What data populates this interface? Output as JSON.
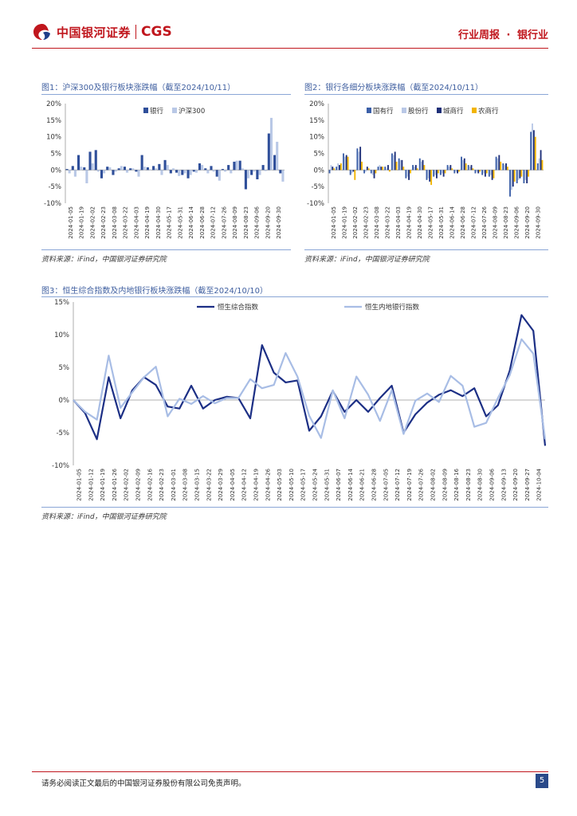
{
  "header": {
    "logo_cn": "中国银河证券",
    "logo_en": "CGS",
    "report_type": "行业周报",
    "dot": "·",
    "industry": "银行业"
  },
  "figures": [
    {
      "title": "图1：沪深300及银行板块涨跌幅（截至2024/10/11）",
      "source": "资料来源：iFind，中国银河证券研究院"
    },
    {
      "title": "图2：银行各细分板块涨跌幅（截至2024/10/11）",
      "source": "资料来源：iFind，中国银河证券研究院"
    },
    {
      "title": "图3：恒生综合指数及内地银行板块涨跌幅（截至2024/10/10）",
      "source": "资料来源：iFind，中国银河证券研究院"
    }
  ],
  "footer": {
    "disclaimer": "请务必阅读正文最后的中国银河证券股份有限公司免责声明。",
    "page": "5"
  },
  "chart_data": [
    {
      "type": "bar",
      "title": "沪深300及银行板块涨跌幅（截至2024/10/11）",
      "ylim": [
        -10,
        20
      ],
      "yticks": [
        "20%",
        "15%",
        "10%",
        "5%",
        "0%",
        "-5%",
        "-10%"
      ],
      "tick_values": [
        20,
        15,
        10,
        5,
        0,
        -5,
        -10
      ],
      "x_ticks": [
        "2024-01-05",
        "2024-01-19",
        "2024-02-02",
        "2024-02-23",
        "2024-03-08",
        "2024-03-22",
        "2024-04-03",
        "2024-04-19",
        "2024-04-30",
        "2024-05-17",
        "2024-05-31",
        "2024-06-14",
        "2024-06-28",
        "2024-07-12",
        "2024-07-26",
        "2024-08-09",
        "2024-08-23",
        "2024-09-06",
        "2024-09-20",
        "2024-09-30"
      ],
      "series": [
        {
          "name": "银行",
          "color": "#2f4f9a",
          "values": [
            0.3,
            1.2,
            4.5,
            0.8,
            5.5,
            6.0,
            -2.5,
            1.0,
            -1.5,
            0.5,
            1.0,
            0.5,
            -0.5,
            4.5,
            0.8,
            1.2,
            1.8,
            3.0,
            -1.0,
            -0.8,
            -1.5,
            -2.5,
            -0.5,
            2.0,
            0.5,
            1.2,
            -2.0,
            0.3,
            1.5,
            2.5,
            2.8,
            -5.8,
            -1.5,
            -2.8,
            1.5,
            11.0,
            4.5,
            -1.0
          ]
        },
        {
          "name": "沪深300",
          "color": "#b9c8e6",
          "values": [
            -1.0,
            -2.0,
            1.0,
            -4.0,
            2.0,
            -0.5,
            -1.0,
            0.8,
            -0.5,
            1.2,
            -0.8,
            0.5,
            -2.0,
            1.0,
            0.2,
            0.5,
            -1.5,
            1.5,
            0.5,
            -1.8,
            -1.0,
            -1.5,
            -0.8,
            1.5,
            -1.0,
            -0.5,
            -3.2,
            -0.5,
            -1.0,
            2.8,
            0.5,
            -2.5,
            -0.5,
            -1.5,
            -0.3,
            15.7,
            8.5,
            -3.5
          ]
        }
      ]
    },
    {
      "type": "bar",
      "title": "银行各细分板块涨跌幅（截至2024/10/11）",
      "ylim": [
        -10,
        20
      ],
      "yticks": [
        "20%",
        "15%",
        "10%",
        "5%",
        "0%",
        "-5%",
        "-10%"
      ],
      "tick_values": [
        20,
        15,
        10,
        5,
        0,
        -5,
        -10
      ],
      "x_ticks": [
        "2024-01-05",
        "2024-01-19",
        "2024-02-02",
        "2024-02-23",
        "2024-03-08",
        "2024-03-22",
        "2024-04-03",
        "2024-04-19",
        "2024-04-30",
        "2024-05-17",
        "2024-05-31",
        "2024-06-14",
        "2024-06-28",
        "2024-07-12",
        "2024-07-26",
        "2024-08-09",
        "2024-08-23",
        "2024-09-06",
        "2024-09-20",
        "2024-09-30"
      ],
      "series": [
        {
          "name": "国有行",
          "color": "#3b5fa8",
          "values": [
            -1.0,
            1.0,
            5.0,
            -1.5,
            6.5,
            -1.0,
            -1.0,
            1.0,
            1.0,
            5.0,
            3.5,
            -2.5,
            1.5,
            3.5,
            -3.0,
            -2.0,
            -1.5,
            1.5,
            -1.0,
            4.0,
            1.5,
            -1.0,
            -1.5,
            -2.0,
            4.0,
            2.0,
            -8.0,
            -4.0,
            -4.0,
            11.5,
            2.0
          ]
        },
        {
          "name": "股份行",
          "color": "#b9c8e6",
          "values": [
            1.5,
            2.0,
            4.0,
            -1.0,
            5.5,
            -0.5,
            -1.5,
            1.5,
            0.5,
            4.5,
            3.0,
            -2.0,
            1.0,
            2.5,
            -2.5,
            -1.5,
            -1.0,
            1.0,
            -0.5,
            3.0,
            1.0,
            -0.5,
            -1.0,
            -1.5,
            3.5,
            1.5,
            -6.0,
            -3.0,
            -3.0,
            14.0,
            3.5
          ]
        },
        {
          "name": "城商行",
          "color": "#1e2f78",
          "values": [
            1.0,
            1.5,
            4.5,
            -0.5,
            7.0,
            1.0,
            -2.5,
            1.0,
            1.5,
            5.5,
            3.0,
            -3.0,
            1.5,
            3.0,
            -3.5,
            -2.5,
            -2.0,
            1.5,
            -1.0,
            3.5,
            1.5,
            -1.0,
            -2.0,
            -3.0,
            4.5,
            2.0,
            -5.0,
            -2.5,
            -4.0,
            12.0,
            6.0
          ]
        },
        {
          "name": "农商行",
          "color": "#f2b400",
          "values": [
            0.5,
            2.0,
            4.0,
            -3.0,
            2.5,
            0.5,
            -1.0,
            1.0,
            -0.5,
            2.5,
            1.0,
            -1.0,
            0.5,
            1.5,
            -4.5,
            -1.0,
            -1.0,
            0.5,
            -0.5,
            2.0,
            0.5,
            -0.5,
            -1.0,
            -2.5,
            2.5,
            1.0,
            -3.5,
            -2.0,
            -2.0,
            10.0,
            3.0
          ]
        }
      ]
    },
    {
      "type": "line",
      "title": "恒生综合指数及内地银行板块涨跌幅（截至2024/10/10）",
      "ylim": [
        -10,
        15
      ],
      "yticks": [
        "15%",
        "10%",
        "5%",
        "0%",
        "-5%",
        "-10%"
      ],
      "tick_values": [
        15,
        10,
        5,
        0,
        -5,
        -10
      ],
      "x_ticks": [
        "2024-01-05",
        "2024-01-12",
        "2024-01-19",
        "2024-01-26",
        "2024-02-02",
        "2024-02-09",
        "2024-02-16",
        "2024-02-23",
        "2024-03-01",
        "2024-03-08",
        "2024-03-15",
        "2024-03-22",
        "2024-03-29",
        "2024-04-05",
        "2024-04-12",
        "2024-04-19",
        "2024-04-26",
        "2024-05-03",
        "2024-05-10",
        "2024-05-17",
        "2024-05-24",
        "2024-05-31",
        "2024-06-07",
        "2024-06-14",
        "2024-06-21",
        "2024-06-28",
        "2024-07-05",
        "2024-07-12",
        "2024-07-19",
        "2024-07-26",
        "2024-08-02",
        "2024-08-09",
        "2024-08-16",
        "2024-08-23",
        "2024-08-30",
        "2024-09-06",
        "2024-09-13",
        "2024-09-20",
        "2024-09-27",
        "2024-10-04"
      ],
      "series": [
        {
          "name": "恒生综合指数",
          "color": "#1c2f85",
          "values": [
            0,
            -2,
            -6,
            3.5,
            -2.8,
            1.5,
            3.5,
            2.3,
            -1,
            -1.3,
            2.2,
            -1.3,
            0,
            0.5,
            0.3,
            -2.8,
            8.4,
            4.2,
            2.7,
            3,
            -4.7,
            -2.5,
            1.4,
            -1.8,
            0,
            -1.8,
            0.3,
            2.2,
            -5,
            -2.2,
            -0.4,
            0.8,
            1.5,
            0.6,
            1.8,
            -2.5,
            -0.8,
            4.5,
            13,
            10.6,
            -7
          ]
        },
        {
          "name": "恒生内地银行指数",
          "color": "#a8bde5",
          "values": [
            0,
            -1.8,
            -3,
            6.8,
            -1.2,
            1.2,
            3.5,
            5.1,
            -2.5,
            0.2,
            -0.6,
            0.6,
            -0.5,
            0.3,
            0.3,
            3.2,
            1.8,
            2.3,
            7.2,
            3.6,
            -2.4,
            -5.8,
            1.5,
            -2.8,
            3.6,
            0.8,
            -3.2,
            1.5,
            -5.2,
            -0.1,
            1,
            -0.3,
            3.7,
            2.2,
            -4.1,
            -3.5,
            0.3,
            3.8,
            9.3,
            7.1,
            -6
          ]
        }
      ]
    }
  ]
}
